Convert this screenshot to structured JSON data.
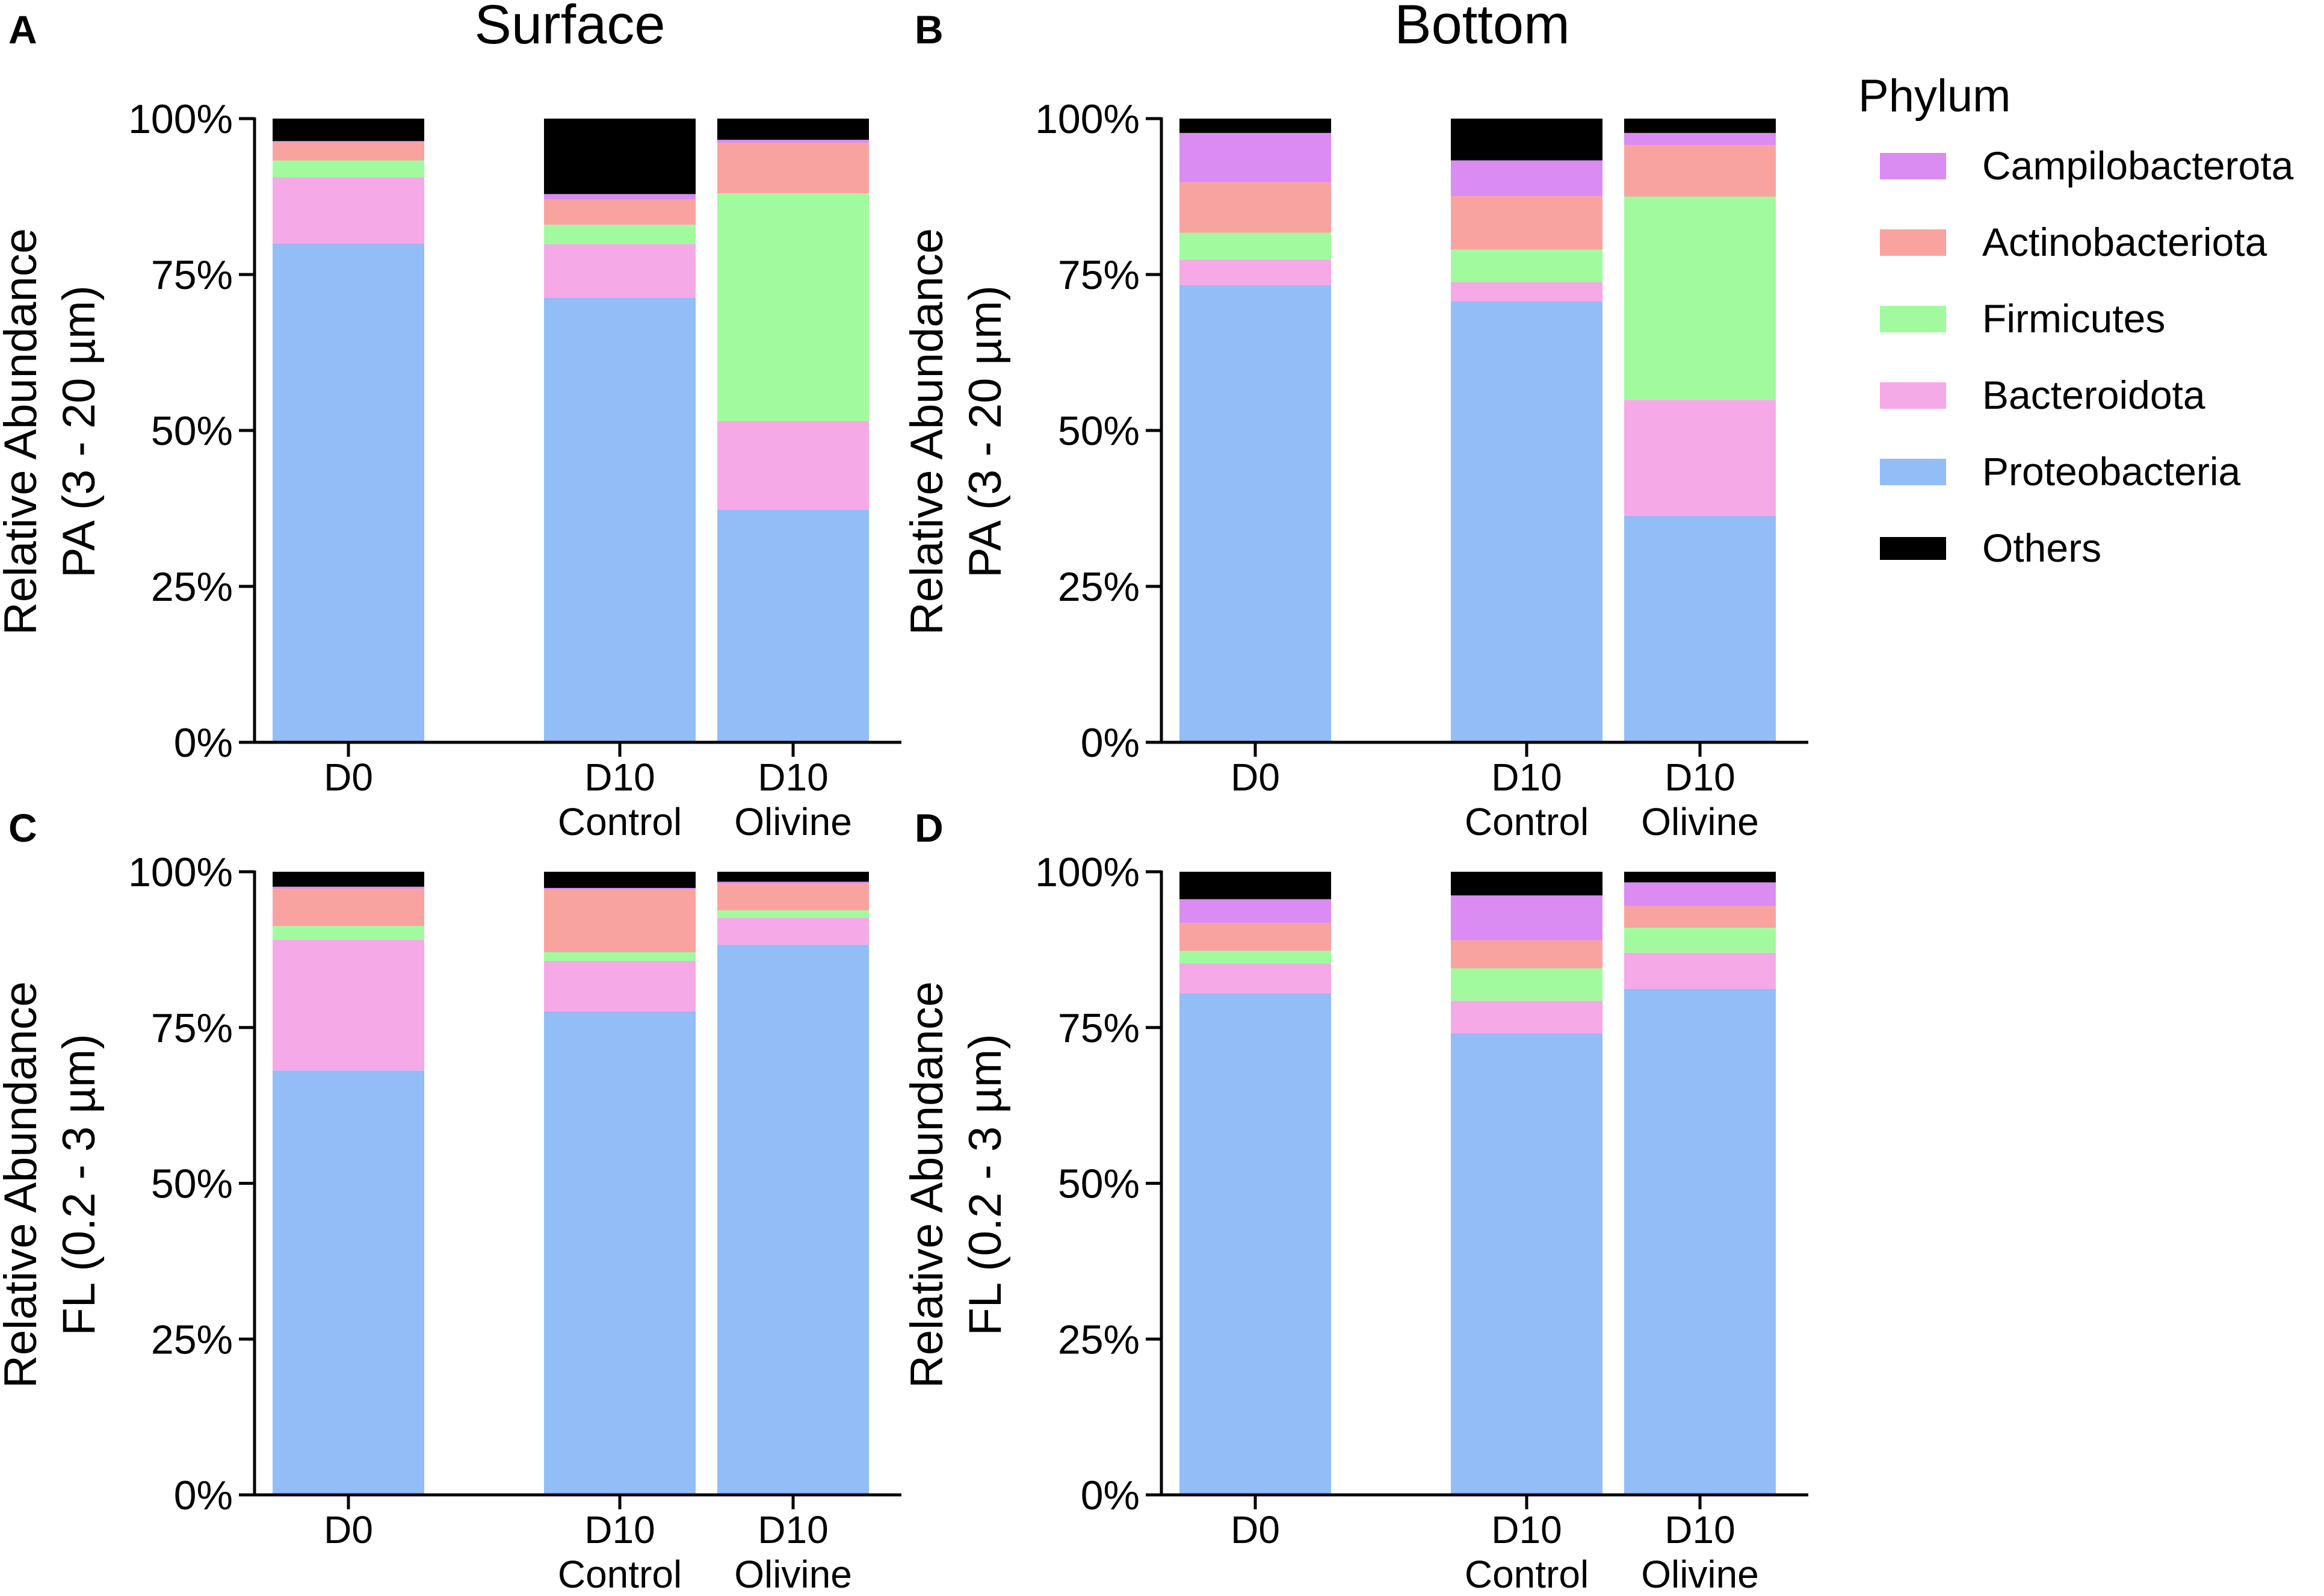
{
  "legend": {
    "title": "Phylum",
    "entries": [
      {
        "name": "Campilobacterota",
        "color": "#DA8CF2"
      },
      {
        "name": "Actinobacteriota",
        "color": "#F9A3A0"
      },
      {
        "name": "Firmicutes",
        "color": "#A1FB9E"
      },
      {
        "name": "Bacteroidota",
        "color": "#F5A9E6"
      },
      {
        "name": "Proteobacteria",
        "color": "#92BDF7"
      },
      {
        "name": "Others",
        "color": "#000000"
      }
    ]
  },
  "column_titles": [
    "Surface",
    "Bottom"
  ],
  "chart_data": [
    {
      "type": "bar",
      "stacked": true,
      "panel": "A",
      "title": "Surface",
      "ylabel": [
        "Relative Abundance",
        "PA (3 - 20 µm)"
      ],
      "categories": [
        [
          "D0"
        ],
        [
          "D10",
          "Control"
        ],
        [
          "D10",
          "Olivine"
        ]
      ],
      "yticks": [
        "0%",
        "25%",
        "50%",
        "75%",
        "100%"
      ],
      "ylim": [
        0,
        100
      ],
      "series": [
        {
          "name": "Proteobacteria",
          "values": [
            80.0,
            71.3,
            37.3
          ]
        },
        {
          "name": "Bacteroidota",
          "values": [
            10.6,
            8.6,
            14.2
          ]
        },
        {
          "name": "Firmicutes",
          "values": [
            2.7,
            3.1,
            36.5
          ]
        },
        {
          "name": "Actinobacteriota",
          "values": [
            2.9,
            4.0,
            8.1
          ]
        },
        {
          "name": "Campilobacterota",
          "values": [
            0.2,
            0.9,
            0.5
          ]
        },
        {
          "name": "Others",
          "values": [
            3.6,
            12.1,
            3.4
          ]
        }
      ]
    },
    {
      "type": "bar",
      "stacked": true,
      "panel": "B",
      "title": "Bottom",
      "ylabel": [
        "Relative Abundance",
        "PA (3 - 20 µm)"
      ],
      "categories": [
        [
          "D0"
        ],
        [
          "D10",
          "Control"
        ],
        [
          "D10",
          "Olivine"
        ]
      ],
      "yticks": [
        "0%",
        "25%",
        "50%",
        "75%",
        "100%"
      ],
      "ylim": [
        0,
        100
      ],
      "series": [
        {
          "name": "Proteobacteria",
          "values": [
            73.3,
            70.7,
            36.3
          ]
        },
        {
          "name": "Bacteroidota",
          "values": [
            4.1,
            3.1,
            18.6
          ]
        },
        {
          "name": "Firmicutes",
          "values": [
            4.3,
            5.2,
            32.6
          ]
        },
        {
          "name": "Actinobacteriota",
          "values": [
            8.1,
            8.6,
            8.3
          ]
        },
        {
          "name": "Campilobacterota",
          "values": [
            7.9,
            5.7,
            1.9
          ]
        },
        {
          "name": "Others",
          "values": [
            2.3,
            6.7,
            2.3
          ]
        }
      ]
    },
    {
      "type": "bar",
      "stacked": true,
      "panel": "C",
      "title": "",
      "ylabel": [
        "Relative Abundance",
        "FL (0.2 - 3 µm)"
      ],
      "categories": [
        [
          "D0"
        ],
        [
          "D10",
          "Control"
        ],
        [
          "D10",
          "Olivine"
        ]
      ],
      "yticks": [
        "0%",
        "25%",
        "50%",
        "75%",
        "100%"
      ],
      "ylim": [
        0,
        100
      ],
      "series": [
        {
          "name": "Proteobacteria",
          "values": [
            68.1,
            77.6,
            88.3
          ]
        },
        {
          "name": "Bacteroidota",
          "values": [
            21.0,
            8.1,
            4.3
          ]
        },
        {
          "name": "Firmicutes",
          "values": [
            2.2,
            1.4,
            1.2
          ]
        },
        {
          "name": "Actinobacteriota",
          "values": [
            6.0,
            10.1,
            4.3
          ]
        },
        {
          "name": "Campilobacterota",
          "values": [
            0.3,
            0.2,
            0.3
          ]
        },
        {
          "name": "Others",
          "values": [
            2.4,
            2.6,
            1.6
          ]
        }
      ]
    },
    {
      "type": "bar",
      "stacked": true,
      "panel": "D",
      "title": "",
      "ylabel": [
        "Relative Abundance",
        "FL (0.2 - 3 µm)"
      ],
      "categories": [
        [
          "D0"
        ],
        [
          "D10",
          "Control"
        ],
        [
          "D10",
          "Olivine"
        ]
      ],
      "yticks": [
        "0%",
        "25%",
        "50%",
        "75%",
        "100%"
      ],
      "ylim": [
        0,
        100
      ],
      "series": [
        {
          "name": "Proteobacteria",
          "values": [
            80.5,
            74.1,
            81.2
          ]
        },
        {
          "name": "Bacteroidota",
          "values": [
            4.8,
            5.2,
            5.8
          ]
        },
        {
          "name": "Firmicutes",
          "values": [
            2.0,
            5.2,
            4.0
          ]
        },
        {
          "name": "Actinobacteriota",
          "values": [
            4.5,
            4.5,
            3.5
          ]
        },
        {
          "name": "Campilobacterota",
          "values": [
            3.8,
            7.2,
            3.8
          ]
        },
        {
          "name": "Others",
          "values": [
            4.4,
            3.8,
            1.7
          ]
        }
      ]
    }
  ]
}
